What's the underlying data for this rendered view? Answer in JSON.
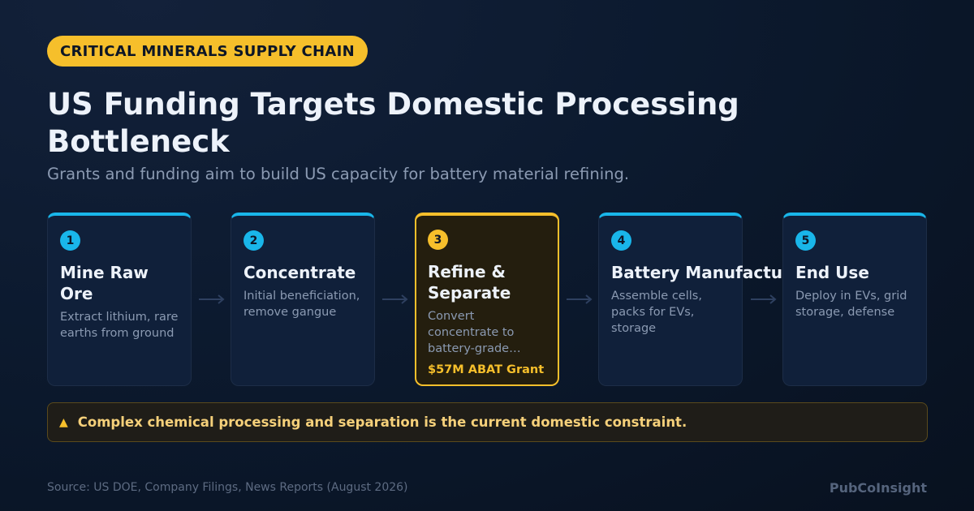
{
  "badge": "CRITICAL MINERALS SUPPLY CHAIN",
  "title": "US Funding Targets Domestic Processing Bottleneck",
  "subtitle": "Grants and funding aim to build US capacity for battery material refining.",
  "steps": [
    {
      "number": "1",
      "title": "Mine Raw Ore",
      "description": "Extract lithium, rare earths from ground"
    },
    {
      "number": "2",
      "title": "Concentrate",
      "description": "Initial beneficiation, remove gangue"
    },
    {
      "number": "3",
      "title": "Refine & Separate",
      "description": "Convert concentrate to battery-grade chemicals",
      "note": "$57M ABAT Grant"
    },
    {
      "number": "4",
      "title": "Battery Manufacturing",
      "description": "Assemble cells, packs for EVs, storage"
    },
    {
      "number": "5",
      "title": "End Use",
      "description": "Deploy in EVs, grid storage, defense"
    }
  ],
  "alert": {
    "icon": "warning-icon",
    "text": "Complex chemical processing and separation is the current domestic constraint."
  },
  "footer": {
    "source": "Source: US DOE, Company Filings, News Reports (August 2026)",
    "brand": "PubCoInsight"
  },
  "colors": {
    "accent": "#19b6ea",
    "highlight": "#f6bf2b",
    "background": "#0c1a2f"
  }
}
